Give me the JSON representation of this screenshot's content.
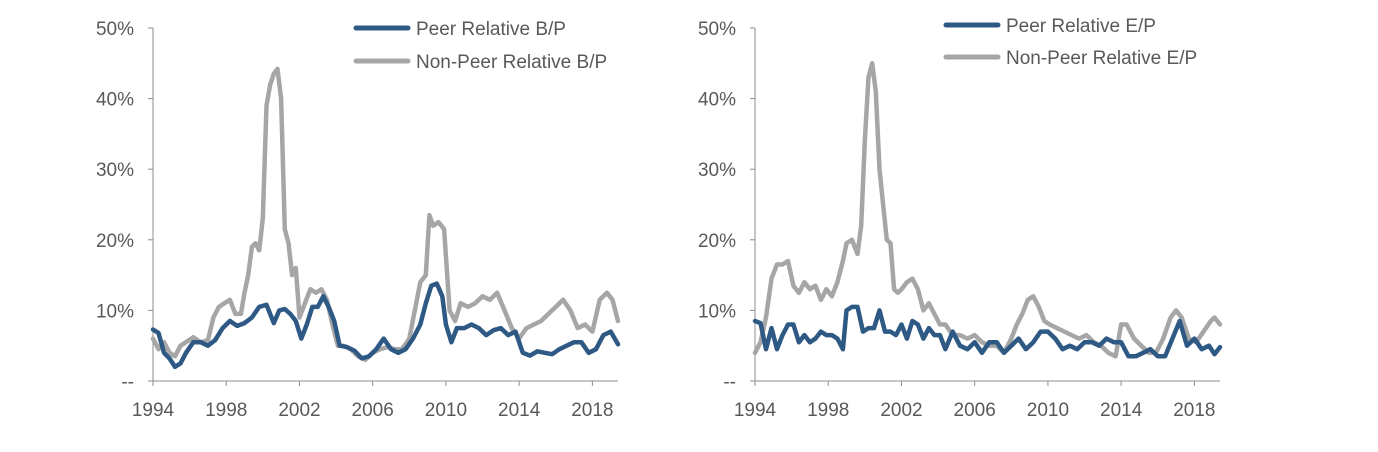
{
  "colors": {
    "peer": "#2e5984",
    "non_peer": "#a6a6a6",
    "axis": "#8c8c8c",
    "text": "#595959"
  },
  "chart_data": [
    {
      "type": "line",
      "title": "",
      "xlabel": "",
      "ylabel": "",
      "xlim": [
        1994,
        2019.4
      ],
      "ylim": [
        0,
        50
      ],
      "x_ticks": [
        1994,
        1998,
        2002,
        2006,
        2010,
        2014,
        2018
      ],
      "x_tick_labels": [
        "1994",
        "1998",
        "2002",
        "2006",
        "2010",
        "2014",
        "2018"
      ],
      "y_ticks": [
        0,
        10,
        20,
        30,
        40,
        50
      ],
      "y_tick_labels": [
        "--",
        "10%",
        "20%",
        "30%",
        "40%",
        "50%"
      ],
      "grid": false,
      "legend": "top-center",
      "series": [
        {
          "name": "Peer Relative B/P",
          "x": [
            1994.0,
            1994.3,
            1994.6,
            1994.9,
            1995.2,
            1995.5,
            1995.8,
            1996.2,
            1996.6,
            1997.0,
            1997.4,
            1997.8,
            1998.2,
            1998.6,
            1999.0,
            1999.4,
            1999.8,
            2000.2,
            2000.6,
            2000.9,
            2001.2,
            2001.5,
            2001.8,
            2002.1,
            2002.4,
            2002.7,
            2003.0,
            2003.3,
            2003.6,
            2003.9,
            2004.2,
            2004.6,
            2005.0,
            2005.4,
            2005.8,
            2006.2,
            2006.6,
            2007.0,
            2007.4,
            2007.8,
            2008.2,
            2008.6,
            2008.9,
            2009.2,
            2009.5,
            2009.8,
            2010.0,
            2010.3,
            2010.6,
            2011.0,
            2011.4,
            2011.8,
            2012.2,
            2012.6,
            2013.0,
            2013.4,
            2013.8,
            2014.2,
            2014.6,
            2015.0,
            2015.4,
            2015.8,
            2016.2,
            2016.6,
            2017.0,
            2017.4,
            2017.8,
            2018.2,
            2018.6,
            2019.0,
            2019.4
          ],
          "values": [
            7.3,
            6.8,
            4.0,
            3.2,
            2.0,
            2.5,
            4.0,
            5.5,
            5.5,
            5.0,
            5.8,
            7.5,
            8.5,
            7.8,
            8.2,
            9.0,
            10.5,
            10.8,
            8.2,
            10.0,
            10.2,
            9.5,
            8.5,
            6.0,
            8.0,
            10.5,
            10.5,
            12.0,
            10.5,
            8.5,
            5.0,
            4.8,
            4.3,
            3.2,
            3.5,
            4.5,
            6.0,
            4.5,
            4.0,
            4.5,
            6.0,
            8.0,
            11.0,
            13.5,
            13.8,
            12.0,
            8.0,
            5.5,
            7.5,
            7.5,
            8.0,
            7.5,
            6.5,
            7.2,
            7.5,
            6.5,
            7.0,
            4.0,
            3.6,
            4.2,
            4.0,
            3.8,
            4.5,
            5.0,
            5.5,
            5.5,
            4.0,
            4.5,
            6.5,
            7.0,
            5.2
          ]
        },
        {
          "name": "Non-Peer Relative B/P",
          "x": [
            1994.0,
            1994.3,
            1994.6,
            1994.9,
            1995.2,
            1995.5,
            1995.8,
            1996.2,
            1996.6,
            1997.0,
            1997.3,
            1997.6,
            1997.9,
            1998.2,
            1998.5,
            1998.8,
            1999.0,
            1999.2,
            1999.4,
            1999.6,
            1999.8,
            2000.0,
            2000.2,
            2000.4,
            2000.6,
            2000.8,
            2001.0,
            2001.2,
            2001.4,
            2001.6,
            2001.8,
            2002.0,
            2002.3,
            2002.6,
            2002.9,
            2003.2,
            2003.5,
            2003.8,
            2004.1,
            2004.4,
            2004.8,
            2005.2,
            2005.6,
            2006.0,
            2006.4,
            2006.8,
            2007.2,
            2007.6,
            2008.0,
            2008.3,
            2008.6,
            2008.9,
            2009.1,
            2009.3,
            2009.6,
            2009.9,
            2010.2,
            2010.5,
            2010.8,
            2011.2,
            2011.6,
            2012.0,
            2012.4,
            2012.8,
            2013.2,
            2013.6,
            2014.0,
            2014.4,
            2014.8,
            2015.2,
            2015.6,
            2016.0,
            2016.4,
            2016.8,
            2017.2,
            2017.6,
            2018.0,
            2018.4,
            2018.8,
            2019.1,
            2019.4
          ],
          "values": [
            6.0,
            4.5,
            5.5,
            4.0,
            3.5,
            5.0,
            5.5,
            6.2,
            5.5,
            5.8,
            9.0,
            10.5,
            11.0,
            11.5,
            9.5,
            9.5,
            12.5,
            15.0,
            19.0,
            19.5,
            18.5,
            23.0,
            39.0,
            42.0,
            43.5,
            44.2,
            40.0,
            21.5,
            19.5,
            15.0,
            16.0,
            9.0,
            11.0,
            13.0,
            12.5,
            13.0,
            11.5,
            8.0,
            5.0,
            5.0,
            4.5,
            3.5,
            3.0,
            4.0,
            4.5,
            4.8,
            4.5,
            4.5,
            6.0,
            10.0,
            14.0,
            15.0,
            23.5,
            22.0,
            22.5,
            21.5,
            10.0,
            8.5,
            11.0,
            10.5,
            11.0,
            12.0,
            11.5,
            12.5,
            10.0,
            7.5,
            6.0,
            7.5,
            8.0,
            8.5,
            9.5,
            10.5,
            11.5,
            10.0,
            7.5,
            8.0,
            7.0,
            11.5,
            12.5,
            11.5,
            8.5
          ]
        }
      ]
    },
    {
      "type": "line",
      "title": "",
      "xlabel": "",
      "ylabel": "",
      "xlim": [
        1994,
        2019.4
      ],
      "ylim": [
        0,
        50
      ],
      "x_ticks": [
        1994,
        1998,
        2002,
        2006,
        2010,
        2014,
        2018
      ],
      "x_tick_labels": [
        "1994",
        "1998",
        "2002",
        "2006",
        "2010",
        "2014",
        "2018"
      ],
      "y_ticks": [
        0,
        10,
        20,
        30,
        40,
        50
      ],
      "y_tick_labels": [
        "--",
        "10%",
        "20%",
        "30%",
        "40%",
        "50%"
      ],
      "grid": false,
      "legend": "top-center",
      "series": [
        {
          "name": "Peer Relative E/P",
          "x": [
            1994.0,
            1994.3,
            1994.6,
            1994.9,
            1995.2,
            1995.5,
            1995.8,
            1996.1,
            1996.4,
            1996.7,
            1997.0,
            1997.3,
            1997.6,
            1997.9,
            1998.2,
            1998.5,
            1998.8,
            1999.0,
            1999.3,
            1999.6,
            1999.9,
            2000.2,
            2000.5,
            2000.8,
            2001.1,
            2001.4,
            2001.7,
            2002.0,
            2002.3,
            2002.6,
            2002.9,
            2003.2,
            2003.5,
            2003.8,
            2004.1,
            2004.4,
            2004.8,
            2005.2,
            2005.6,
            2006.0,
            2006.4,
            2006.8,
            2007.2,
            2007.6,
            2008.0,
            2008.4,
            2008.8,
            2009.2,
            2009.6,
            2010.0,
            2010.4,
            2010.8,
            2011.2,
            2011.6,
            2012.0,
            2012.4,
            2012.8,
            2013.2,
            2013.6,
            2014.0,
            2014.4,
            2014.8,
            2015.2,
            2015.6,
            2016.0,
            2016.4,
            2016.8,
            2017.2,
            2017.6,
            2018.0,
            2018.4,
            2018.8,
            2019.1,
            2019.4
          ],
          "values": [
            8.5,
            8.2,
            4.5,
            7.5,
            4.5,
            6.5,
            8.0,
            8.0,
            5.5,
            6.5,
            5.5,
            6.0,
            7.0,
            6.5,
            6.5,
            6.0,
            4.5,
            10.0,
            10.5,
            10.5,
            7.0,
            7.5,
            7.5,
            10.0,
            7.0,
            7.0,
            6.5,
            8.0,
            6.0,
            8.5,
            8.0,
            6.0,
            7.5,
            6.5,
            6.5,
            4.5,
            7.0,
            5.0,
            4.5,
            5.5,
            4.0,
            5.5,
            5.5,
            4.0,
            5.0,
            6.0,
            4.5,
            5.5,
            7.0,
            7.0,
            6.0,
            4.5,
            5.0,
            4.5,
            5.5,
            5.5,
            5.0,
            6.0,
            5.5,
            5.5,
            3.5,
            3.5,
            4.0,
            4.5,
            3.5,
            3.5,
            6.0,
            8.5,
            5.0,
            6.0,
            4.5,
            5.0,
            3.8,
            4.8
          ]
        },
        {
          "name": "Non-Peer Relative E/P",
          "x": [
            1994.0,
            1994.3,
            1994.6,
            1994.9,
            1995.2,
            1995.5,
            1995.8,
            1996.1,
            1996.4,
            1996.7,
            1997.0,
            1997.3,
            1997.6,
            1997.9,
            1998.2,
            1998.5,
            1998.8,
            1999.0,
            1999.3,
            1999.6,
            1999.8,
            2000.0,
            2000.2,
            2000.4,
            2000.6,
            2000.8,
            2001.0,
            2001.2,
            2001.4,
            2001.6,
            2001.8,
            2002.0,
            2002.3,
            2002.6,
            2002.9,
            2003.2,
            2003.5,
            2003.8,
            2004.1,
            2004.4,
            2004.8,
            2005.2,
            2005.6,
            2006.0,
            2006.4,
            2006.8,
            2007.2,
            2007.6,
            2008.0,
            2008.3,
            2008.6,
            2008.9,
            2009.2,
            2009.5,
            2009.8,
            2010.1,
            2010.5,
            2010.9,
            2011.3,
            2011.7,
            2012.1,
            2012.5,
            2012.9,
            2013.3,
            2013.7,
            2014.0,
            2014.3,
            2014.7,
            2015.1,
            2015.5,
            2015.9,
            2016.3,
            2016.7,
            2017.0,
            2017.3,
            2017.7,
            2018.1,
            2018.5,
            2018.9,
            2019.1,
            2019.4
          ],
          "values": [
            4.0,
            5.5,
            9.0,
            14.5,
            16.5,
            16.5,
            17.0,
            13.5,
            12.5,
            14.0,
            13.0,
            13.5,
            11.5,
            13.0,
            12.0,
            14.0,
            17.0,
            19.5,
            20.0,
            18.0,
            22.0,
            34.0,
            43.0,
            45.0,
            41.0,
            30.0,
            25.0,
            20.0,
            19.5,
            13.0,
            12.5,
            13.0,
            14.0,
            14.5,
            13.0,
            10.0,
            11.0,
            9.5,
            8.0,
            8.0,
            6.5,
            6.5,
            6.0,
            6.5,
            5.5,
            5.0,
            5.0,
            4.0,
            6.0,
            8.0,
            9.5,
            11.5,
            12.0,
            10.5,
            8.5,
            8.0,
            7.5,
            7.0,
            6.5,
            6.0,
            6.5,
            5.5,
            5.0,
            4.0,
            3.5,
            8.0,
            8.0,
            6.0,
            5.0,
            4.0,
            4.0,
            6.0,
            9.0,
            10.0,
            9.0,
            6.0,
            5.5,
            7.0,
            8.5,
            9.0,
            8.0
          ]
        }
      ]
    }
  ]
}
